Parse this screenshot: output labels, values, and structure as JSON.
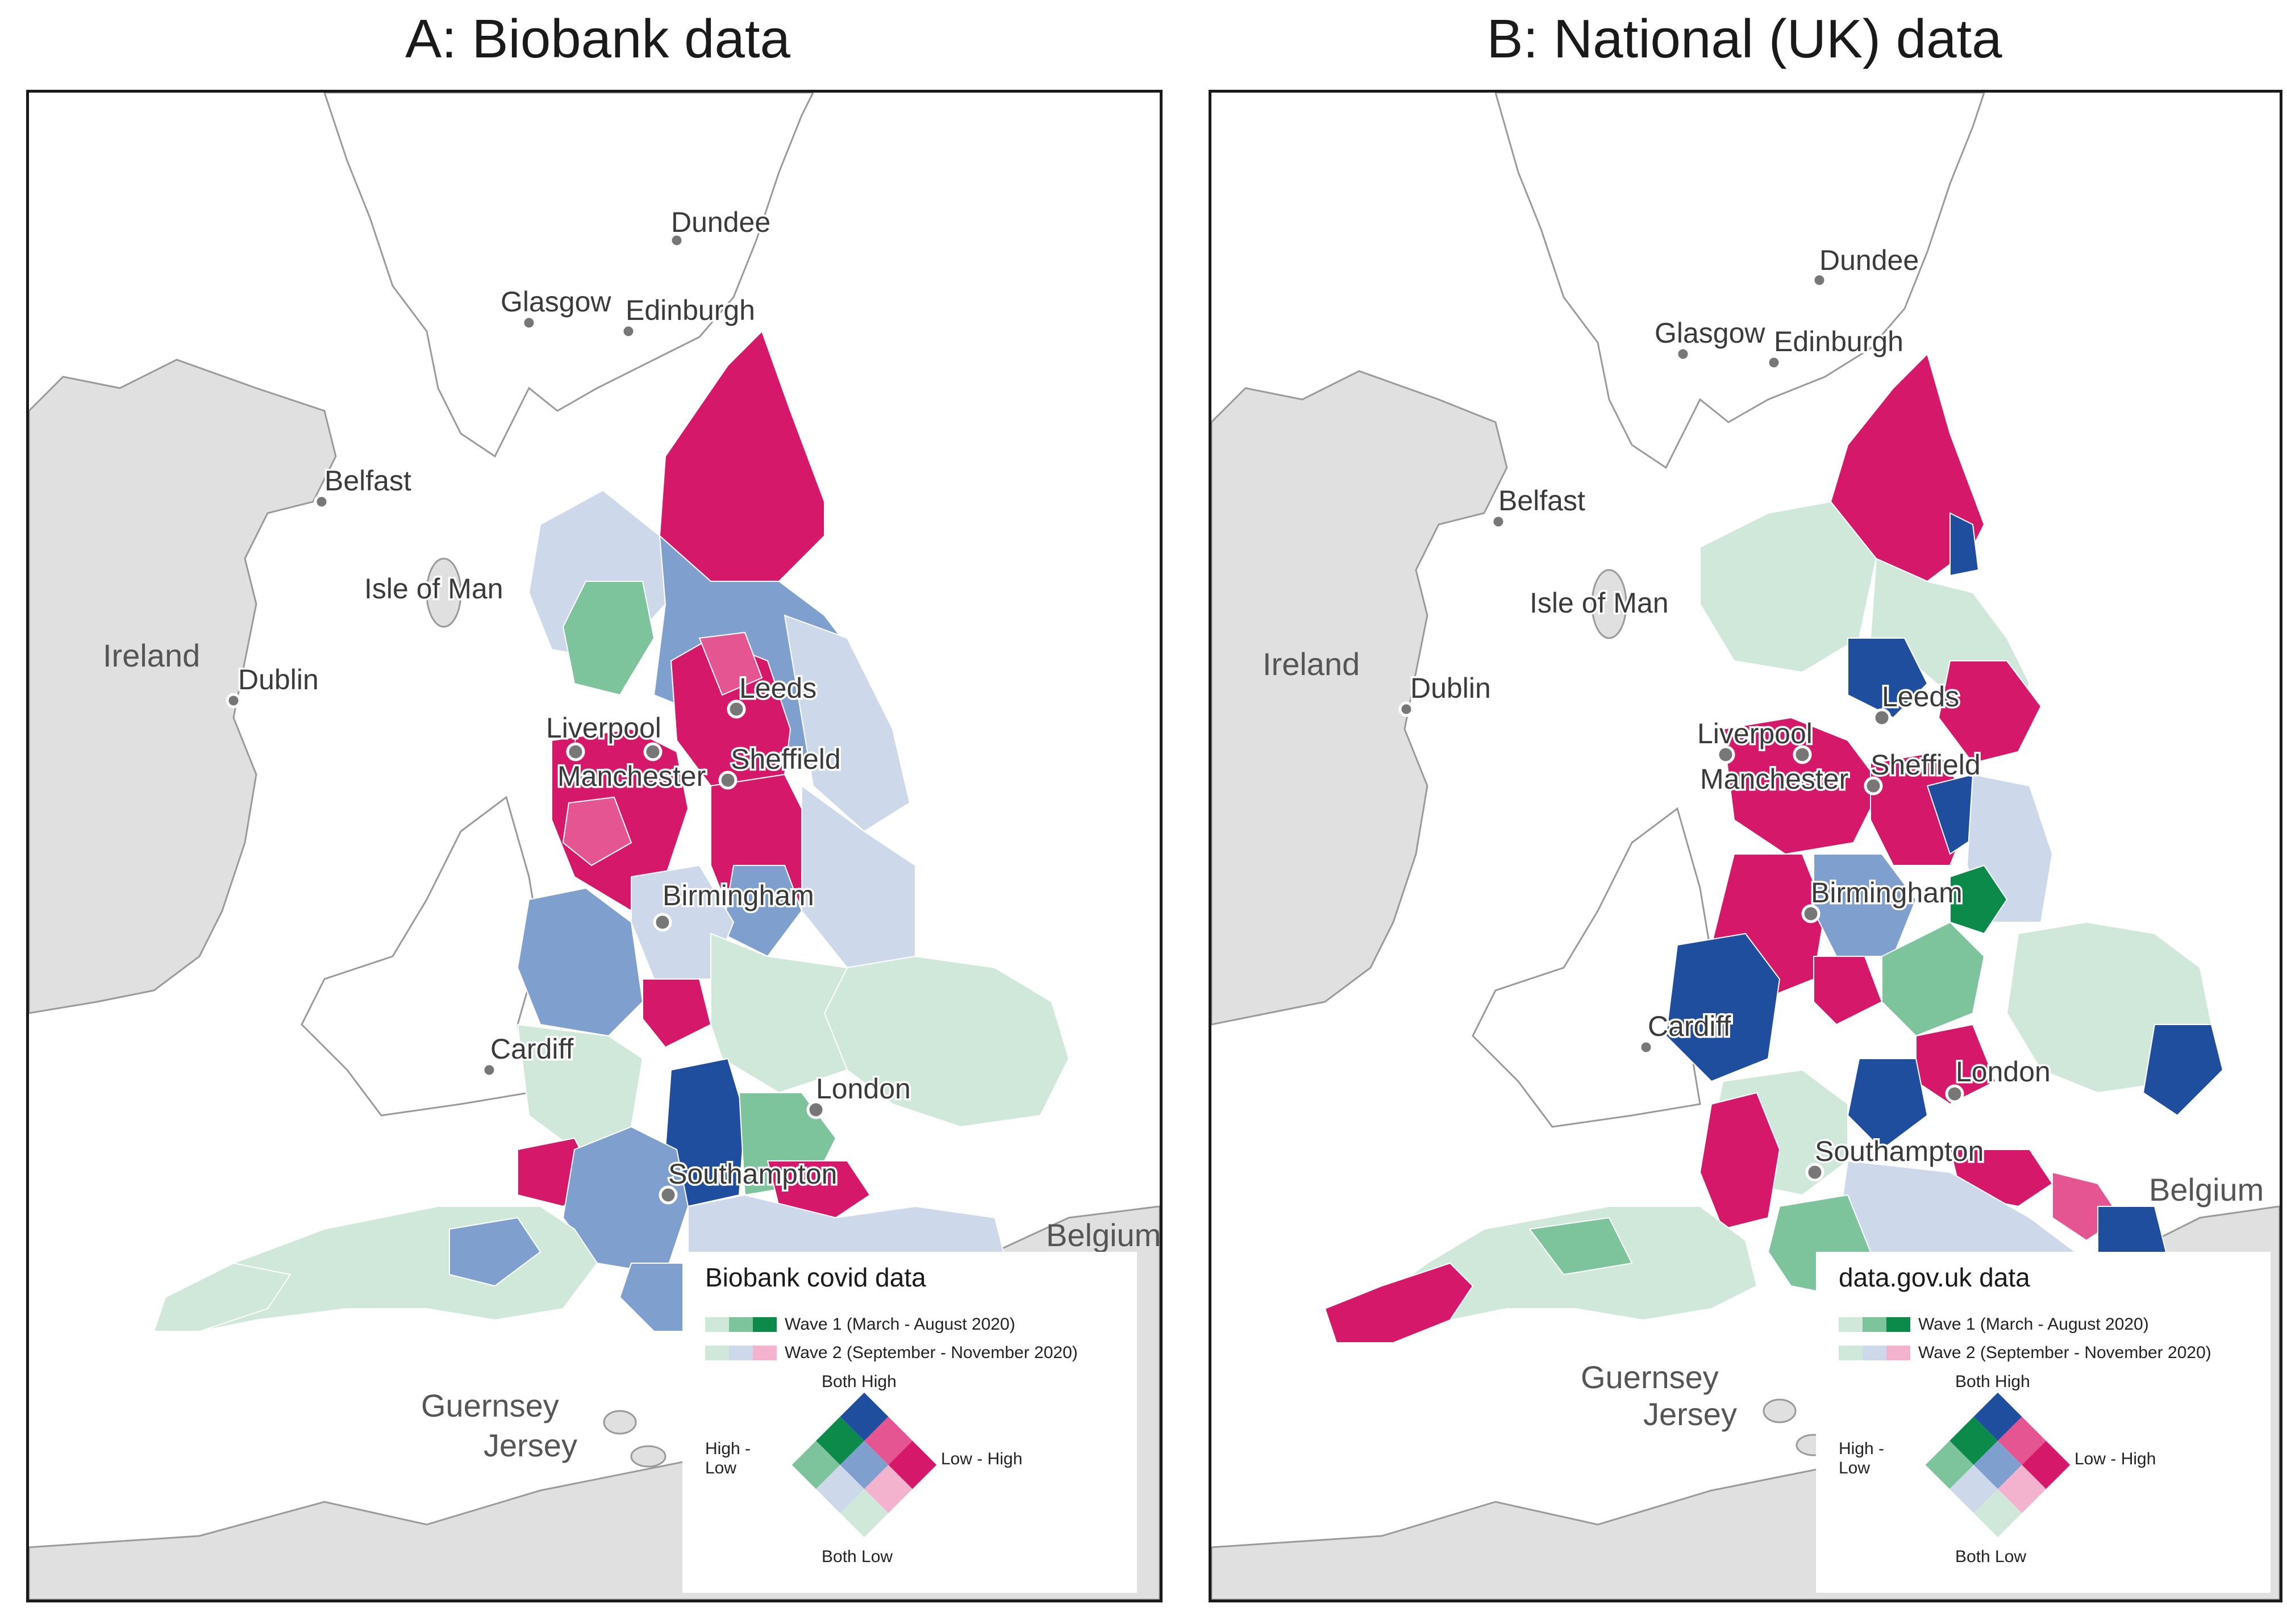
{
  "panels": {
    "a": {
      "title": "A: Biobank data",
      "legend": {
        "title": "Biobank covid data",
        "wave1": "Wave 1 (March - August 2020)",
        "wave2": "Wave 2 (September - November 2020)",
        "both_high": "Both High",
        "both_low": "Both Low",
        "high_low": "High -\nLow",
        "low_high": "Low - High"
      }
    },
    "b": {
      "title": "B: National (UK) data",
      "legend": {
        "title": "data.gov.uk data",
        "wave1": "Wave 1 (March - August 2020)",
        "wave2": "Wave 2 (September - November 2020)",
        "both_high": "Both High",
        "both_low": "Both Low",
        "high_low": "High -\nLow",
        "low_high": "Low - High"
      }
    }
  },
  "places": {
    "dundee": "Dundee",
    "glasgow": "Glasgow",
    "edinburgh": "Edinburgh",
    "belfast": "Belfast",
    "isle_of_man": "Isle of Man",
    "ireland": "Ireland",
    "dublin": "Dublin",
    "leeds": "Leeds",
    "liverpool": "Liverpool",
    "manchester": "Manchester",
    "sheffield": "Sheffield",
    "birmingham": "Birmingham",
    "cardiff": "Cardiff",
    "london": "London",
    "southampton": "Southampton",
    "belgium": "Belgium",
    "guernsey": "Guernsey",
    "jersey": "Jersey"
  },
  "colors": {
    "both_high": "#d6186b",
    "high_mid": "#e55592",
    "low_high": "#f3b3cf",
    "high_low_strong": "#0b8a4a",
    "mid_green": "#7dc49c",
    "both_low": "#cfe8da",
    "both_high_blue": "#1f4e9e",
    "mid_blue": "#7fa0cf",
    "light_blue": "#cdd8ea",
    "land_grey": "#e0e0e0",
    "coast": "#9a9a9a"
  }
}
